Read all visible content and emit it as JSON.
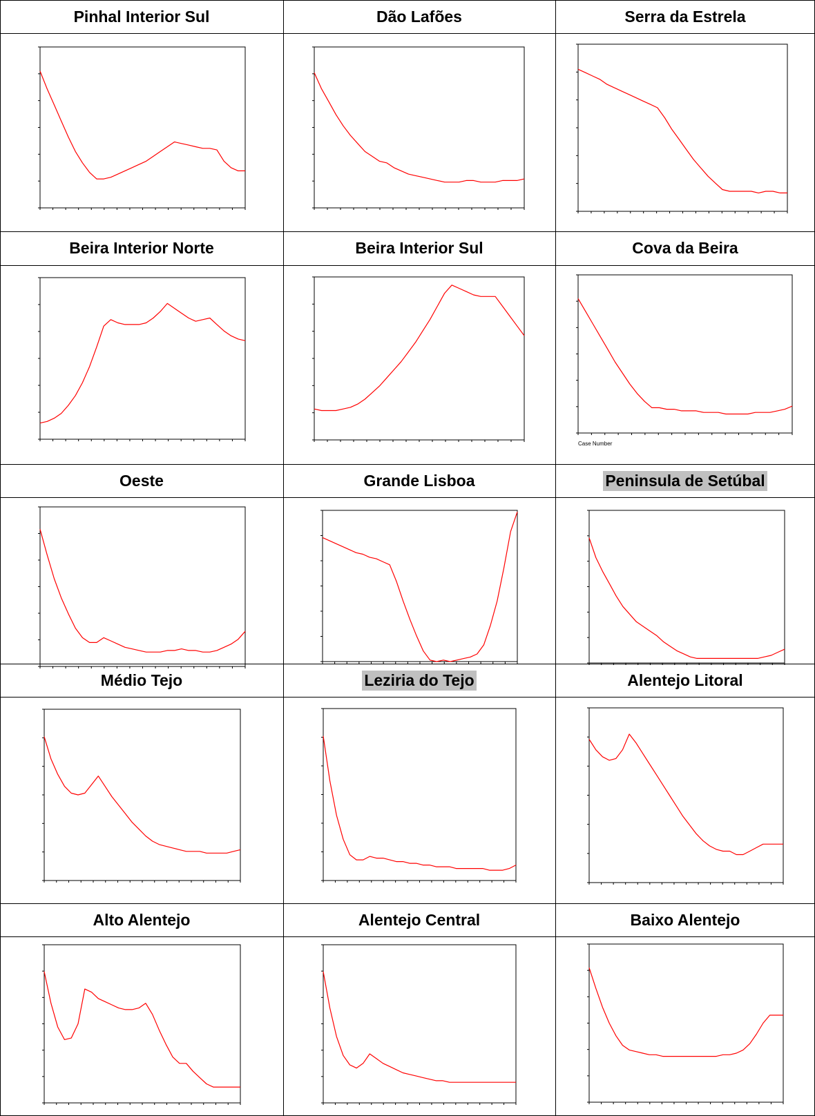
{
  "colors": {
    "series": "#ff0000",
    "axis": "#000000",
    "highlight": "#c0c0c0"
  },
  "headers": [
    {
      "text": "Pinhal Interior Sul",
      "highlight": false
    },
    {
      "text": "Dão Lafões",
      "highlight": false
    },
    {
      "text": "Serra da Estrela",
      "highlight": false
    },
    {
      "text": "Beira Interior Norte",
      "highlight": false
    },
    {
      "text": "Beira Interior Sul",
      "highlight": false
    },
    {
      "text": "Cova da Beira",
      "highlight": false
    },
    {
      "text": "Oeste",
      "highlight": false
    },
    {
      "text": "Grande Lisboa",
      "highlight": false
    },
    {
      "text": "Peninsula de Setúbal",
      "highlight": true
    },
    {
      "text": "Médio Tejo",
      "highlight": false
    },
    {
      "text": "Leziria do Tejo",
      "highlight": true
    },
    {
      "text": "Alentejo Litoral",
      "highlight": false
    },
    {
      "text": "Alto Alentejo",
      "highlight": false
    },
    {
      "text": "Alentejo Central",
      "highlight": false
    },
    {
      "text": "Baixo Alentejo",
      "highlight": false
    }
  ],
  "chart_data": [
    {
      "type": "line",
      "region": "Pinhal Interior Sul",
      "ylim": [
        0,
        1
      ],
      "xlabel": "",
      "x": [
        0,
        1,
        2,
        3,
        4,
        5,
        6,
        7,
        8,
        9,
        10,
        11,
        12,
        13,
        14,
        15,
        16,
        17,
        18,
        19,
        20,
        21,
        22,
        23,
        24,
        25,
        26,
        27,
        28,
        29
      ],
      "y": [
        0.85,
        0.74,
        0.64,
        0.54,
        0.44,
        0.35,
        0.28,
        0.22,
        0.18,
        0.18,
        0.19,
        0.21,
        0.23,
        0.25,
        0.27,
        0.29,
        0.32,
        0.35,
        0.38,
        0.41,
        0.4,
        0.39,
        0.38,
        0.37,
        0.37,
        0.36,
        0.29,
        0.25,
        0.23,
        0.23
      ]
    },
    {
      "type": "line",
      "region": "Dão Lafões",
      "ylim": [
        0,
        1
      ],
      "xlabel": "",
      "x": [
        0,
        1,
        2,
        3,
        4,
        5,
        6,
        7,
        8,
        9,
        10,
        11,
        12,
        13,
        14,
        15,
        16,
        17,
        18,
        19,
        20,
        21,
        22,
        23,
        24,
        25,
        26,
        27,
        28,
        29
      ],
      "y": [
        0.84,
        0.74,
        0.66,
        0.58,
        0.51,
        0.45,
        0.4,
        0.35,
        0.32,
        0.29,
        0.28,
        0.25,
        0.23,
        0.21,
        0.2,
        0.19,
        0.18,
        0.17,
        0.16,
        0.16,
        0.16,
        0.17,
        0.17,
        0.16,
        0.16,
        0.16,
        0.17,
        0.17,
        0.17,
        0.18
      ]
    },
    {
      "type": "line",
      "region": "Serra da Estrela",
      "ylim": [
        0,
        1
      ],
      "xlabel": "",
      "x": [
        0,
        1,
        2,
        3,
        4,
        5,
        6,
        7,
        8,
        9,
        10,
        11,
        12,
        13,
        14,
        15,
        16,
        17,
        18,
        19,
        20,
        21,
        22,
        23,
        24,
        25,
        26,
        27,
        28,
        29
      ],
      "y": [
        0.85,
        0.83,
        0.81,
        0.79,
        0.76,
        0.74,
        0.72,
        0.7,
        0.68,
        0.66,
        0.64,
        0.62,
        0.56,
        0.49,
        0.43,
        0.37,
        0.31,
        0.26,
        0.21,
        0.17,
        0.13,
        0.12,
        0.12,
        0.12,
        0.12,
        0.11,
        0.12,
        0.12,
        0.11,
        0.11
      ]
    },
    {
      "type": "line",
      "region": "Beira Interior Norte",
      "ylim": [
        0,
        1
      ],
      "xlabel": "",
      "x": [
        0,
        1,
        2,
        3,
        4,
        5,
        6,
        7,
        8,
        9,
        10,
        11,
        12,
        13,
        14,
        15,
        16,
        17,
        18,
        19,
        20,
        21,
        22,
        23,
        24,
        25,
        26,
        27,
        28,
        29
      ],
      "y": [
        0.1,
        0.11,
        0.13,
        0.16,
        0.21,
        0.27,
        0.35,
        0.45,
        0.57,
        0.7,
        0.74,
        0.72,
        0.71,
        0.71,
        0.71,
        0.72,
        0.75,
        0.79,
        0.84,
        0.81,
        0.78,
        0.75,
        0.73,
        0.74,
        0.75,
        0.71,
        0.67,
        0.64,
        0.62,
        0.61
      ]
    },
    {
      "type": "line",
      "region": "Beira Interior Sul",
      "ylim": [
        0,
        1
      ],
      "xlabel": "",
      "x": [
        0,
        1,
        2,
        3,
        4,
        5,
        6,
        7,
        8,
        9,
        10,
        11,
        12,
        13,
        14,
        15,
        16,
        17,
        18,
        19,
        20,
        21,
        22,
        23,
        24,
        25,
        26,
        27,
        28,
        29
      ],
      "y": [
        0.19,
        0.18,
        0.18,
        0.18,
        0.19,
        0.2,
        0.22,
        0.25,
        0.29,
        0.33,
        0.38,
        0.43,
        0.48,
        0.54,
        0.6,
        0.67,
        0.74,
        0.82,
        0.9,
        0.95,
        0.93,
        0.91,
        0.89,
        0.88,
        0.88,
        0.88,
        0.82,
        0.76,
        0.7,
        0.64
      ]
    },
    {
      "type": "line",
      "region": "Cova da Beira",
      "ylim": [
        0,
        1
      ],
      "xlabel": "Case Number",
      "x": [
        0,
        1,
        2,
        3,
        4,
        5,
        6,
        7,
        8,
        9,
        10,
        11,
        12,
        13,
        14,
        15,
        16,
        17,
        18,
        19,
        20,
        21,
        22,
        23,
        24,
        25,
        26,
        27,
        28,
        29
      ],
      "y": [
        0.85,
        0.77,
        0.69,
        0.61,
        0.53,
        0.45,
        0.38,
        0.31,
        0.25,
        0.2,
        0.16,
        0.16,
        0.15,
        0.15,
        0.14,
        0.14,
        0.14,
        0.13,
        0.13,
        0.13,
        0.12,
        0.12,
        0.12,
        0.12,
        0.13,
        0.13,
        0.13,
        0.14,
        0.15,
        0.17
      ]
    },
    {
      "type": "line",
      "region": "Oeste",
      "ylim": [
        0,
        1
      ],
      "xlabel": "",
      "x": [
        0,
        1,
        2,
        3,
        4,
        5,
        6,
        7,
        8,
        9,
        10,
        11,
        12,
        13,
        14,
        15,
        16,
        17,
        18,
        19,
        20,
        21,
        22,
        23,
        24,
        25,
        26,
        27,
        28,
        29
      ],
      "y": [
        0.86,
        0.7,
        0.55,
        0.43,
        0.33,
        0.24,
        0.18,
        0.15,
        0.15,
        0.18,
        0.16,
        0.14,
        0.12,
        0.11,
        0.1,
        0.09,
        0.09,
        0.09,
        0.1,
        0.1,
        0.11,
        0.1,
        0.1,
        0.09,
        0.09,
        0.1,
        0.12,
        0.14,
        0.17,
        0.22
      ]
    },
    {
      "type": "line",
      "region": "Grande Lisboa",
      "ylim": [
        0,
        1
      ],
      "xlabel": "",
      "x": [
        0,
        1,
        2,
        3,
        4,
        5,
        6,
        7,
        8,
        9,
        10,
        11,
        12,
        13,
        14,
        15,
        16,
        17,
        18,
        19,
        20,
        21,
        22,
        23,
        24,
        25,
        26,
        27,
        28,
        29
      ],
      "y": [
        0.82,
        0.8,
        0.78,
        0.76,
        0.74,
        0.72,
        0.71,
        0.69,
        0.68,
        0.66,
        0.64,
        0.53,
        0.4,
        0.28,
        0.17,
        0.07,
        0.01,
        0.0,
        0.01,
        0.0,
        0.01,
        0.02,
        0.03,
        0.05,
        0.11,
        0.24,
        0.4,
        0.62,
        0.86,
        0.99
      ]
    },
    {
      "type": "line",
      "region": "Peninsula de Setúbal",
      "ylim": [
        0,
        1
      ],
      "xlabel": "",
      "x": [
        0,
        1,
        2,
        3,
        4,
        5,
        6,
        7,
        8,
        9,
        10,
        11,
        12,
        13,
        14,
        15,
        16,
        17,
        18,
        19,
        20,
        21,
        22,
        23,
        24,
        25,
        26,
        27,
        28,
        29
      ],
      "y": [
        0.82,
        0.69,
        0.6,
        0.52,
        0.44,
        0.37,
        0.32,
        0.27,
        0.24,
        0.21,
        0.18,
        0.14,
        0.11,
        0.08,
        0.06,
        0.04,
        0.03,
        0.03,
        0.03,
        0.03,
        0.03,
        0.03,
        0.03,
        0.03,
        0.03,
        0.03,
        0.04,
        0.05,
        0.07,
        0.09
      ]
    },
    {
      "type": "line",
      "region": "Médio Tejo",
      "ylim": [
        0,
        1
      ],
      "xlabel": "",
      "x": [
        0,
        1,
        2,
        3,
        4,
        5,
        6,
        7,
        8,
        9,
        10,
        11,
        12,
        13,
        14,
        15,
        16,
        17,
        18,
        19,
        20,
        21,
        22,
        23,
        24,
        25,
        26,
        27,
        28,
        29
      ],
      "y": [
        0.84,
        0.71,
        0.62,
        0.55,
        0.51,
        0.5,
        0.51,
        0.56,
        0.61,
        0.55,
        0.49,
        0.44,
        0.39,
        0.34,
        0.3,
        0.26,
        0.23,
        0.21,
        0.2,
        0.19,
        0.18,
        0.17,
        0.17,
        0.17,
        0.16,
        0.16,
        0.16,
        0.16,
        0.17,
        0.18
      ]
    },
    {
      "type": "line",
      "region": "Leziria do Tejo",
      "ylim": [
        0,
        1
      ],
      "xlabel": "",
      "x": [
        0,
        1,
        2,
        3,
        4,
        5,
        6,
        7,
        8,
        9,
        10,
        11,
        12,
        13,
        14,
        15,
        16,
        17,
        18,
        19,
        20,
        21,
        22,
        23,
        24,
        25,
        26,
        27,
        28,
        29
      ],
      "y": [
        0.84,
        0.58,
        0.38,
        0.24,
        0.15,
        0.12,
        0.12,
        0.14,
        0.13,
        0.13,
        0.12,
        0.11,
        0.11,
        0.1,
        0.1,
        0.09,
        0.09,
        0.08,
        0.08,
        0.08,
        0.07,
        0.07,
        0.07,
        0.07,
        0.07,
        0.06,
        0.06,
        0.06,
        0.07,
        0.09
      ]
    },
    {
      "type": "line",
      "region": "Alentejo Litoral",
      "ylim": [
        0,
        1
      ],
      "xlabel": "",
      "x": [
        0,
        1,
        2,
        3,
        4,
        5,
        6,
        7,
        8,
        9,
        10,
        11,
        12,
        13,
        14,
        15,
        16,
        17,
        18,
        19,
        20,
        21,
        22,
        23,
        24,
        25,
        26,
        27,
        28,
        29
      ],
      "y": [
        0.82,
        0.76,
        0.72,
        0.7,
        0.71,
        0.76,
        0.85,
        0.8,
        0.74,
        0.68,
        0.62,
        0.56,
        0.5,
        0.44,
        0.38,
        0.33,
        0.28,
        0.24,
        0.21,
        0.19,
        0.18,
        0.18,
        0.16,
        0.16,
        0.18,
        0.2,
        0.22,
        0.22,
        0.22,
        0.22
      ]
    },
    {
      "type": "line",
      "region": "Alto Alentejo",
      "ylim": [
        0,
        1
      ],
      "xlabel": "",
      "x": [
        0,
        1,
        2,
        3,
        4,
        5,
        6,
        7,
        8,
        9,
        10,
        11,
        12,
        13,
        14,
        15,
        16,
        17,
        18,
        19,
        20,
        21,
        22,
        23,
        24,
        25,
        26,
        27,
        28,
        29
      ],
      "y": [
        0.83,
        0.63,
        0.48,
        0.4,
        0.41,
        0.5,
        0.72,
        0.7,
        0.66,
        0.64,
        0.62,
        0.6,
        0.59,
        0.59,
        0.6,
        0.63,
        0.56,
        0.46,
        0.37,
        0.29,
        0.25,
        0.25,
        0.2,
        0.16,
        0.12,
        0.1,
        0.1,
        0.1,
        0.1,
        0.1
      ]
    },
    {
      "type": "line",
      "region": "Alentejo Central",
      "ylim": [
        0,
        1
      ],
      "xlabel": "",
      "x": [
        0,
        1,
        2,
        3,
        4,
        5,
        6,
        7,
        8,
        9,
        10,
        11,
        12,
        13,
        14,
        15,
        16,
        17,
        18,
        19,
        20,
        21,
        22,
        23,
        24,
        25,
        26,
        27,
        28,
        29
      ],
      "y": [
        0.83,
        0.6,
        0.42,
        0.3,
        0.24,
        0.22,
        0.25,
        0.31,
        0.28,
        0.25,
        0.23,
        0.21,
        0.19,
        0.18,
        0.17,
        0.16,
        0.15,
        0.14,
        0.14,
        0.13,
        0.13,
        0.13,
        0.13,
        0.13,
        0.13,
        0.13,
        0.13,
        0.13,
        0.13,
        0.13
      ]
    },
    {
      "type": "line",
      "region": "Baixo Alentejo",
      "ylim": [
        0,
        1
      ],
      "xlabel": "",
      "x": [
        0,
        1,
        2,
        3,
        4,
        5,
        6,
        7,
        8,
        9,
        10,
        11,
        12,
        13,
        14,
        15,
        16,
        17,
        18,
        19,
        20,
        21,
        22,
        23,
        24,
        25,
        26,
        27,
        28,
        29
      ],
      "y": [
        0.85,
        0.72,
        0.6,
        0.5,
        0.42,
        0.36,
        0.33,
        0.32,
        0.31,
        0.3,
        0.3,
        0.29,
        0.29,
        0.29,
        0.29,
        0.29,
        0.29,
        0.29,
        0.29,
        0.29,
        0.3,
        0.3,
        0.31,
        0.33,
        0.37,
        0.43,
        0.5,
        0.55,
        0.55,
        0.55
      ]
    }
  ]
}
